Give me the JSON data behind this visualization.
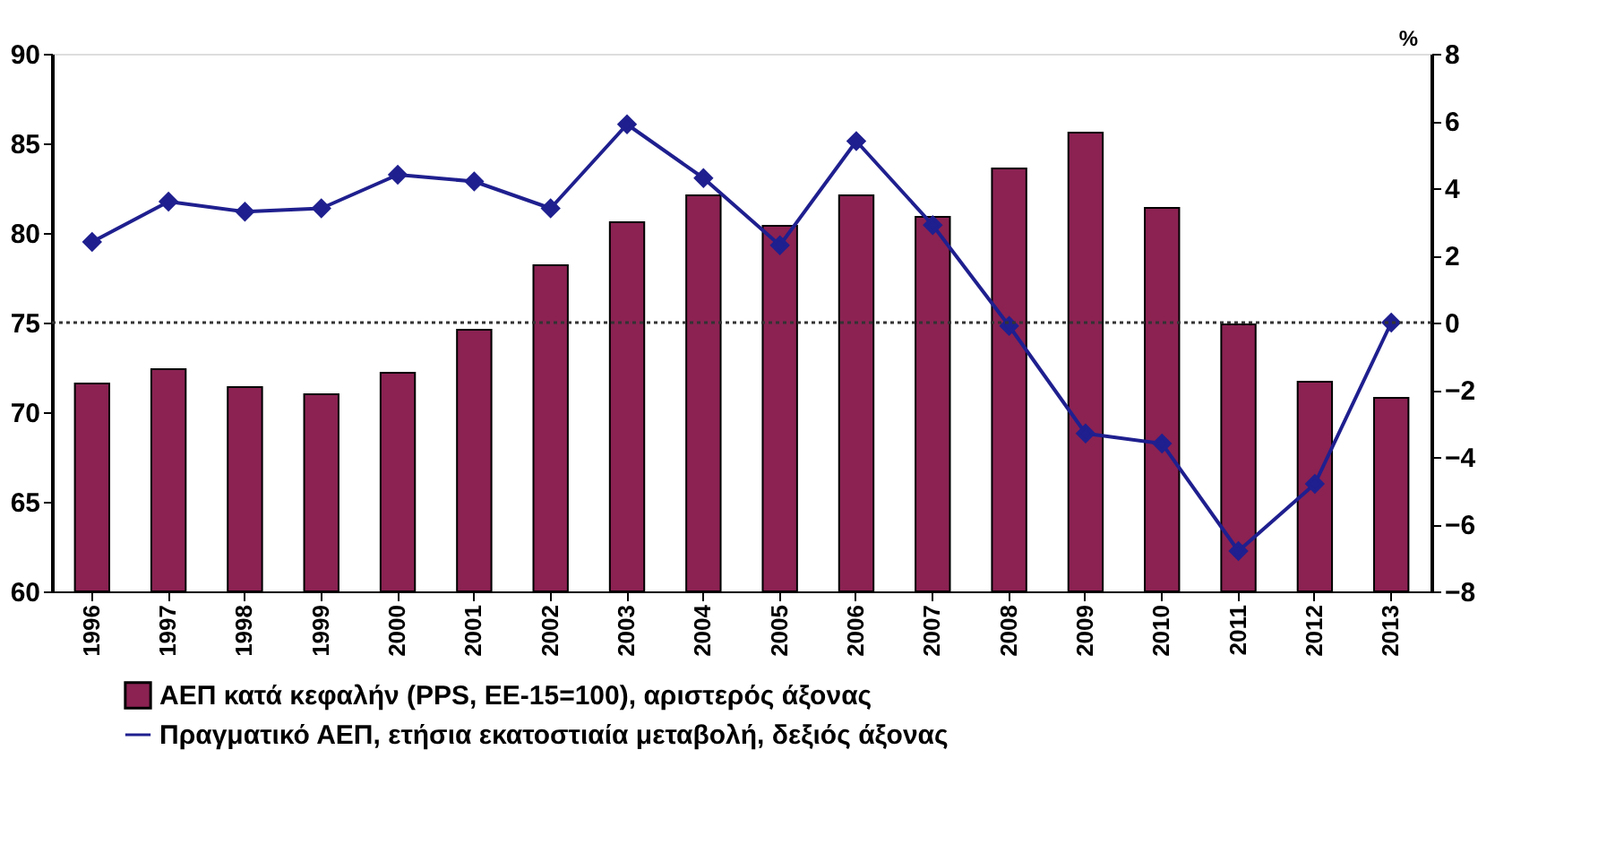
{
  "chart_data": {
    "type": "bar",
    "categories": [
      "1996",
      "1997",
      "1998",
      "1999",
      "2000",
      "2001",
      "2002",
      "2003",
      "2004",
      "2005",
      "2006",
      "2007",
      "2008",
      "2009",
      "2010",
      "2011",
      "2012",
      "2013"
    ],
    "series": [
      {
        "name": "ΑΕΠ κατά κεφαλήν (PPS, ΕΕ-15=100), αριστερός άξονας",
        "color": "#8b2252",
        "values": [
          71.6,
          72.4,
          71.4,
          71.0,
          72.2,
          74.6,
          78.2,
          80.6,
          82.1,
          80.4,
          82.1,
          80.9,
          83.6,
          85.6,
          81.4,
          74.9,
          71.7,
          70.8
        ]
      },
      {
        "name": "Πραγματικό ΑΕΠ, ετήσια εκατοστιαία μεταβολή, δεξιός άξονας",
        "color": "#1f1f8f",
        "type": "line",
        "axis": "y2",
        "marker": "diamond",
        "values": [
          2.4,
          3.6,
          3.3,
          3.4,
          4.4,
          4.2,
          3.4,
          5.9,
          4.3,
          2.3,
          5.4,
          2.9,
          -0.1,
          -3.3,
          -3.6,
          -6.8,
          -4.8,
          0.0
        ]
      }
    ],
    "ylim": [
      60,
      90
    ],
    "yticks": [
      60,
      65,
      70,
      75,
      80,
      85,
      90
    ],
    "y2label": "%",
    "y2lim": [
      -8,
      8
    ],
    "y2ticks": [
      -8,
      -6,
      -4,
      -2,
      0,
      2,
      4,
      6,
      8
    ],
    "ref_lines": [
      {
        "axis": "y2",
        "value": 0,
        "line_style": "dotted",
        "color": "#333333"
      }
    ],
    "grid": false,
    "legend": "bottom"
  }
}
